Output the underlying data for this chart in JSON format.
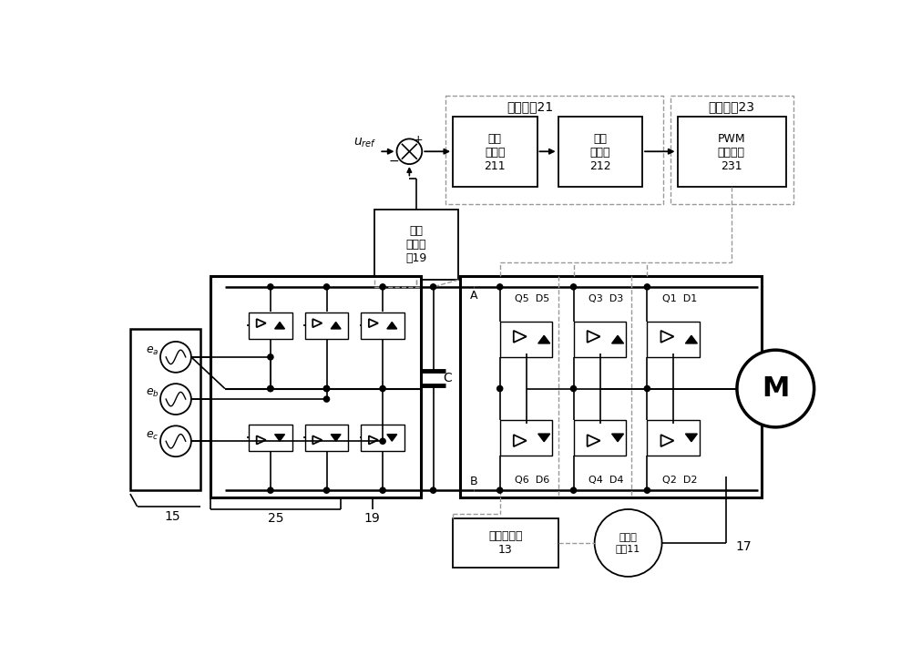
{
  "bg_color": "#ffffff",
  "lc": "#000000",
  "dc": "#999999",
  "gc": "#008800",
  "figw": 10.0,
  "figh": 7.31,
  "labels": {
    "tiaojie": "调节装用21",
    "kongzhi": "控制装用23",
    "dianya_tiao": "电压\n调节环\n211",
    "dianliu_tiao": "电流\n调节环\n212",
    "PWM": "PWM\n输出模块\n231",
    "dianya_caiji": "电压\n采集装\n用19",
    "zhoucheng": "轴承控制器\n13",
    "cixuanfu": "磁悉浮\n轴承11",
    "n15": "15",
    "n25": "25",
    "n19": "19",
    "n17": "17",
    "A": "A",
    "B": "B",
    "C": "C",
    "M": "M",
    "top_labels": [
      "Q5  D5",
      "Q3  D3",
      "Q1  D1"
    ],
    "bot_labels": [
      "Q6  D6",
      "Q4  D4",
      "Q2  D2"
    ]
  }
}
